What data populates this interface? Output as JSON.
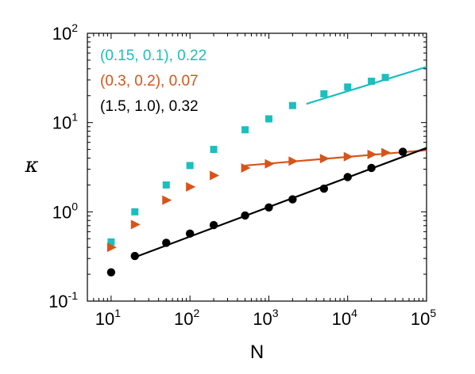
{
  "chart_data": {
    "type": "scatter",
    "xlabel": "N",
    "ylabel": "κ",
    "xscale": "log",
    "yscale": "log",
    "xlim": [
      5,
      100000
    ],
    "ylim": [
      0.1,
      100
    ],
    "grid": false,
    "legend_placement": "top-left",
    "x_ticks": [
      {
        "base": "10",
        "exp": "1",
        "value": 10
      },
      {
        "base": "10",
        "exp": "2",
        "value": 100
      },
      {
        "base": "10",
        "exp": "3",
        "value": 1000
      },
      {
        "base": "10",
        "exp": "4",
        "value": 10000
      },
      {
        "base": "10",
        "exp": "5",
        "value": 100000
      }
    ],
    "y_ticks": [
      {
        "base": "10",
        "exp": "-1",
        "value": 0.1
      },
      {
        "base": "10",
        "exp": "0",
        "value": 1
      },
      {
        "base": "10",
        "exp": "1",
        "value": 10
      },
      {
        "base": "10",
        "exp": "2",
        "value": 100
      }
    ],
    "series": [
      {
        "name": "(0.15, 0.1), 0.22",
        "color": "#1ABFBF",
        "marker": "square",
        "x": [
          10,
          20,
          50,
          100,
          200,
          500,
          1000,
          2000,
          5000,
          10000,
          20000,
          30000
        ],
        "y": [
          0.46,
          1.0,
          2.0,
          3.3,
          5.0,
          8.3,
          11.0,
          15.5,
          21.0,
          25.0,
          29.0,
          32.0
        ],
        "fit": {
          "x": [
            3000,
            100000
          ],
          "y": [
            16.2,
            42.0
          ]
        }
      },
      {
        "name": "(0.3, 0.2), 0.07",
        "color": "#D95319",
        "marker": "triangle-right",
        "x": [
          10,
          20,
          50,
          100,
          200,
          500,
          1000,
          2000,
          5000,
          10000,
          20000,
          30000
        ],
        "y": [
          0.4,
          0.72,
          1.35,
          1.9,
          2.55,
          3.1,
          3.45,
          3.7,
          3.95,
          4.15,
          4.4,
          4.6
        ],
        "fit": {
          "x": [
            500,
            100000
          ],
          "y": [
            3.3,
            4.9
          ]
        }
      },
      {
        "name": "(1.5, 1.0), 0.32",
        "color": "#000000",
        "marker": "circle",
        "x": [
          10,
          20,
          50,
          100,
          200,
          500,
          1000,
          2000,
          5000,
          10000,
          20000,
          50000
        ],
        "y": [
          0.21,
          0.32,
          0.45,
          0.57,
          0.71,
          0.91,
          1.12,
          1.38,
          1.82,
          2.45,
          3.1,
          4.7
        ],
        "fit": {
          "x": [
            20,
            100000
          ],
          "y": [
            0.31,
            5.2
          ]
        }
      }
    ]
  }
}
